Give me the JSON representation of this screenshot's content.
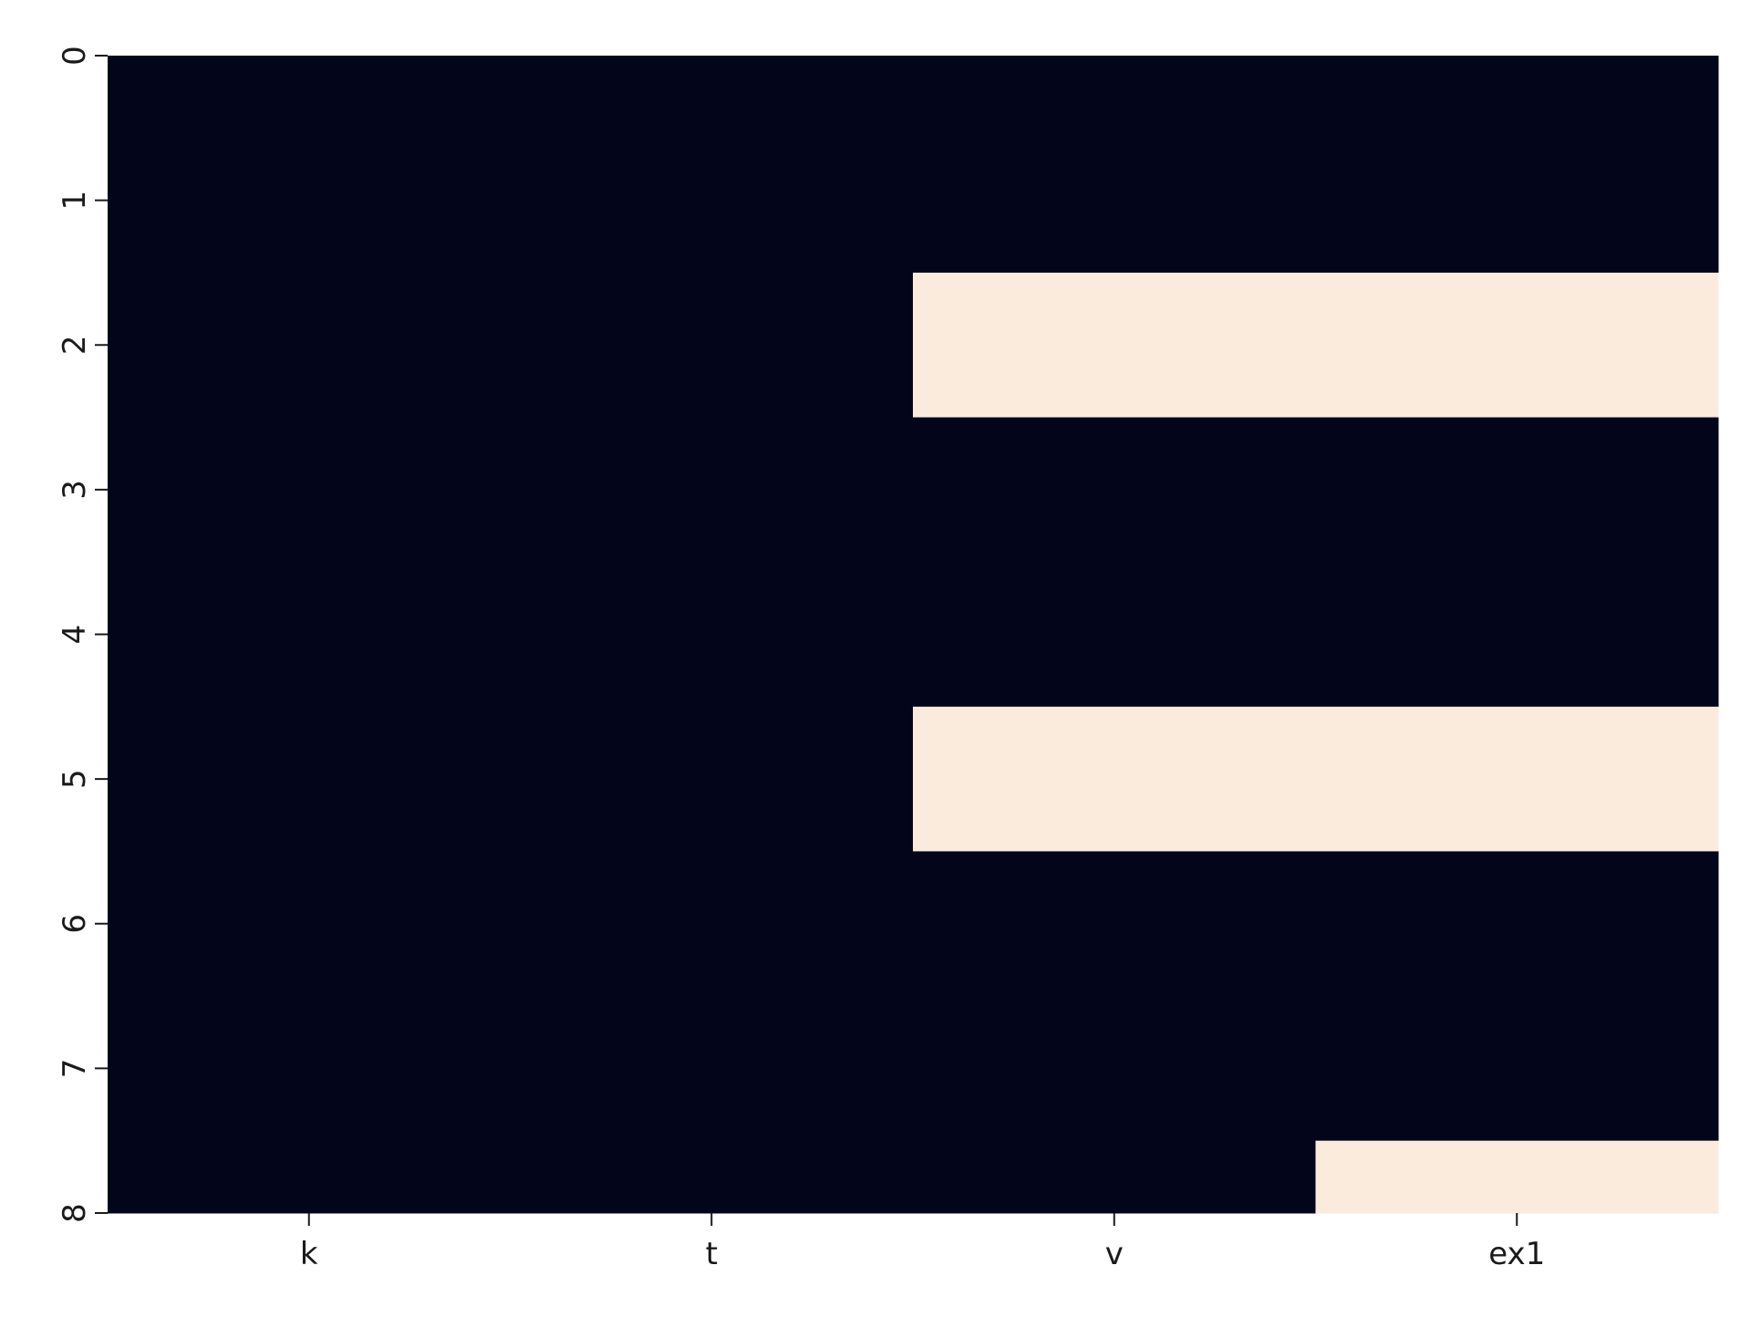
{
  "chart_data": {
    "type": "heatmap",
    "title": "",
    "xlabel": "",
    "ylabel": "",
    "columns": [
      "k",
      "t",
      "v",
      "ex1"
    ],
    "row_ticks": [
      "0",
      "1",
      "2",
      "3",
      "4",
      "5",
      "6",
      "7",
      "8"
    ],
    "ylim": [
      0,
      8
    ],
    "legend": "none",
    "grid": false,
    "colors": {
      "low": "#03061a",
      "high": "#faebdd"
    },
    "cells": [
      {
        "row_start": 0,
        "row_end": 1.5,
        "col_start": 0,
        "col_end": 4,
        "value": 0
      },
      {
        "row_start": 1.5,
        "row_end": 2.5,
        "col_start": 0,
        "col_end": 2,
        "value": 0
      },
      {
        "row_start": 1.5,
        "row_end": 2.5,
        "col_start": 2,
        "col_end": 4,
        "value": 1
      },
      {
        "row_start": 2.5,
        "row_end": 4.5,
        "col_start": 0,
        "col_end": 4,
        "value": 0
      },
      {
        "row_start": 4.5,
        "row_end": 5.5,
        "col_start": 0,
        "col_end": 2,
        "value": 0
      },
      {
        "row_start": 4.5,
        "row_end": 5.5,
        "col_start": 2,
        "col_end": 4,
        "value": 1
      },
      {
        "row_start": 5.5,
        "row_end": 7.5,
        "col_start": 0,
        "col_end": 4,
        "value": 0
      },
      {
        "row_start": 7.5,
        "row_end": 8,
        "col_start": 0,
        "col_end": 3,
        "value": 0
      },
      {
        "row_start": 7.5,
        "row_end": 8,
        "col_start": 3,
        "col_end": 4,
        "value": 1
      }
    ]
  }
}
